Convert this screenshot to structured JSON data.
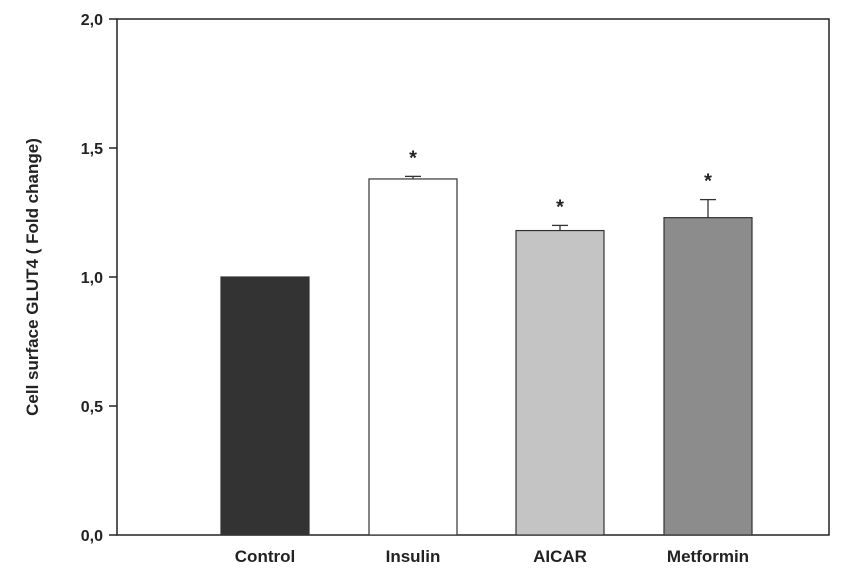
{
  "chart_data": {
    "type": "bar",
    "ylabel": "Cell surface GLUT4 ( Fold change)",
    "xlabel": "",
    "ylim": [
      0.0,
      2.0
    ],
    "yticks": [
      0.0,
      0.5,
      1.0,
      1.5,
      2.0
    ],
    "ytick_labels": [
      "0,0",
      "0,5",
      "1,0",
      "1,5",
      "2,0"
    ],
    "categories": [
      "Control",
      "Insulin",
      "AICAR",
      "Metformin"
    ],
    "values": [
      1.0,
      1.38,
      1.18,
      1.23
    ],
    "errors": [
      0.0,
      0.01,
      0.02,
      0.07
    ],
    "significance": [
      "",
      "*",
      "*",
      "*"
    ],
    "bar_colors": [
      "#333333",
      "#ffffff",
      "#c4c4c4",
      "#8c8c8c"
    ],
    "grid": false,
    "legend": "none"
  }
}
